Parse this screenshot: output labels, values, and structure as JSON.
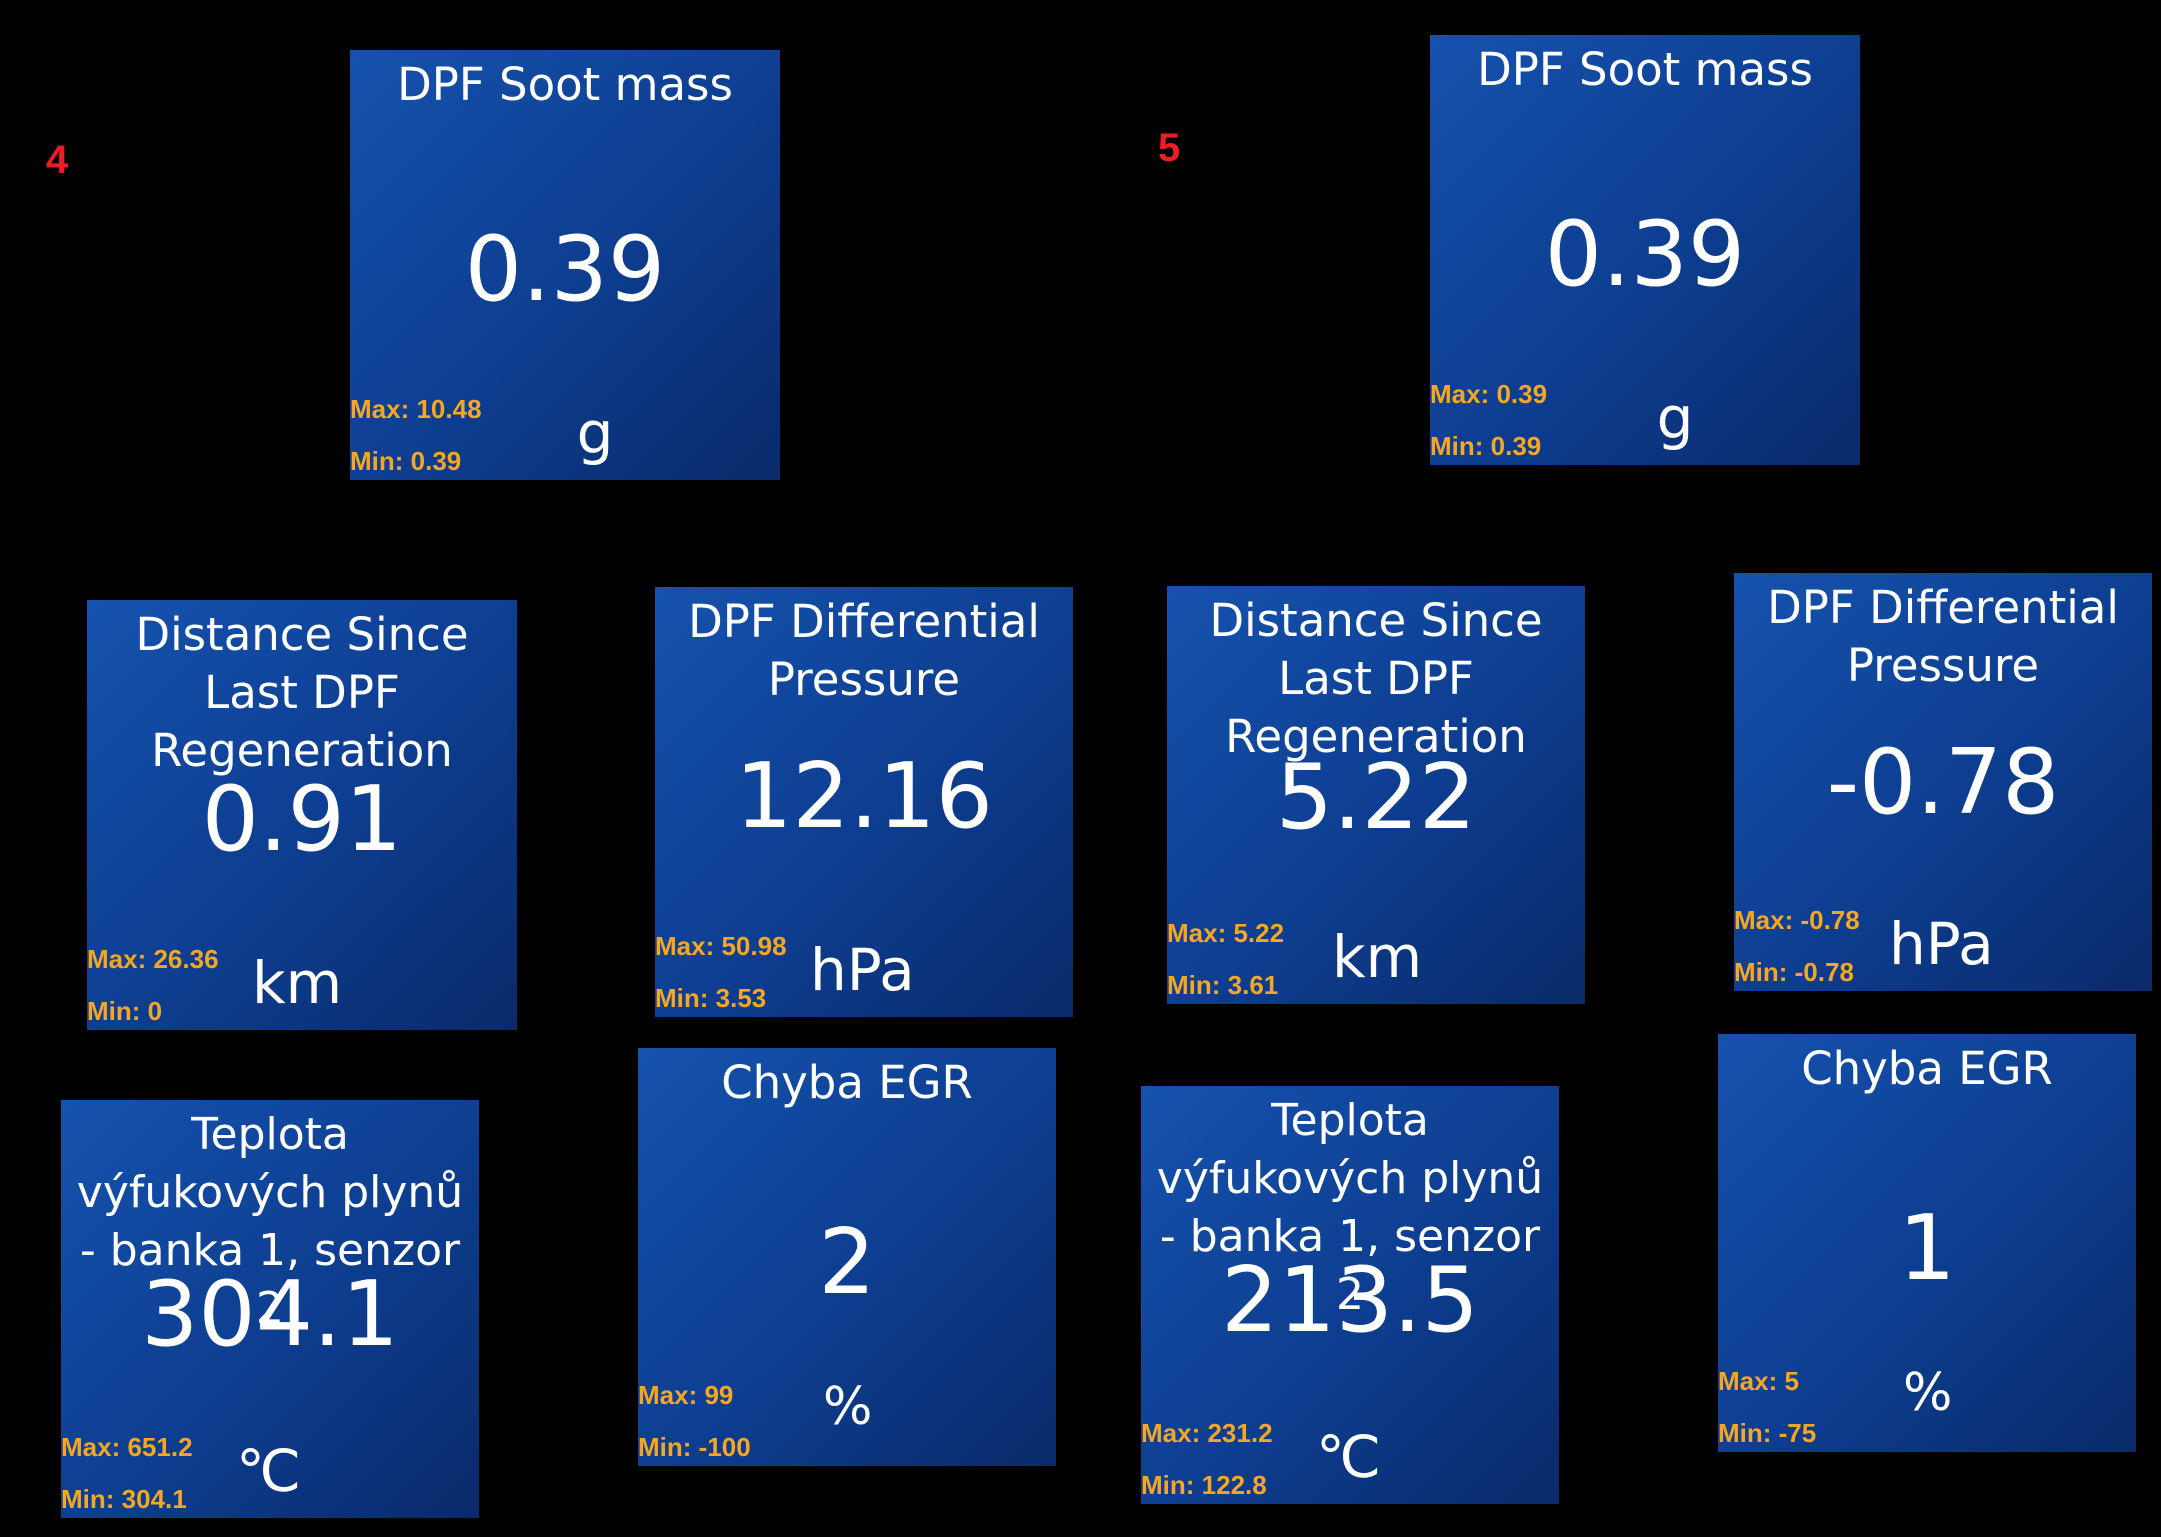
{
  "panels": [
    {
      "label": "4",
      "tiles": {
        "soot": {
          "title": "DPF Soot mass",
          "value": "0.39",
          "max": "Max: 10.48",
          "min": "Min: 0.39",
          "unit": "g"
        },
        "distance": {
          "title": "Distance Since Last DPF Regeneration",
          "value": "0.91",
          "max": "Max: 26.36",
          "min": "Min: 0",
          "unit": "km"
        },
        "pressure": {
          "title": "DPF Differential Pressure",
          "value": "12.16",
          "max": "Max: 50.98",
          "min": "Min: 3.53",
          "unit": "hPa"
        },
        "temp": {
          "title": "Teplota výfukových plynů - banka 1, senzor 2",
          "value": "304.1",
          "max": "Max: 651.2",
          "min": "Min: 304.1",
          "unit": "℃"
        },
        "egr": {
          "title": "Chyba EGR",
          "value": "2",
          "max": "Max: 99",
          "min": "Min: -100",
          "unit": "%"
        }
      }
    },
    {
      "label": "5",
      "tiles": {
        "soot": {
          "title": "DPF Soot mass",
          "value": "0.39",
          "max": "Max: 0.39",
          "min": "Min: 0.39",
          "unit": "g"
        },
        "distance": {
          "title": "Distance Since Last DPF Regeneration",
          "value": "5.22",
          "max": "Max: 5.22",
          "min": "Min: 3.61",
          "unit": "km"
        },
        "pressure": {
          "title": "DPF Differential Pressure",
          "value": "-0.78",
          "max": "Max: -0.78",
          "min": "Min: -0.78",
          "unit": "hPa"
        },
        "temp": {
          "title": "Teplota výfukových plynů - banka 1, senzor 2",
          "value": "213.5",
          "max": "Max: 231.2",
          "min": "Min: 122.8",
          "unit": "℃"
        },
        "egr": {
          "title": "Chyba EGR",
          "value": "1",
          "max": "Max: 5",
          "min": "Min: -75",
          "unit": "%"
        }
      }
    }
  ],
  "colors": {
    "background": "#000000",
    "tile_top": "#1552ae",
    "tile_bottom": "#0a2a6a",
    "minmax_text": "#f5a623",
    "panel_label": "#ee1c25"
  }
}
